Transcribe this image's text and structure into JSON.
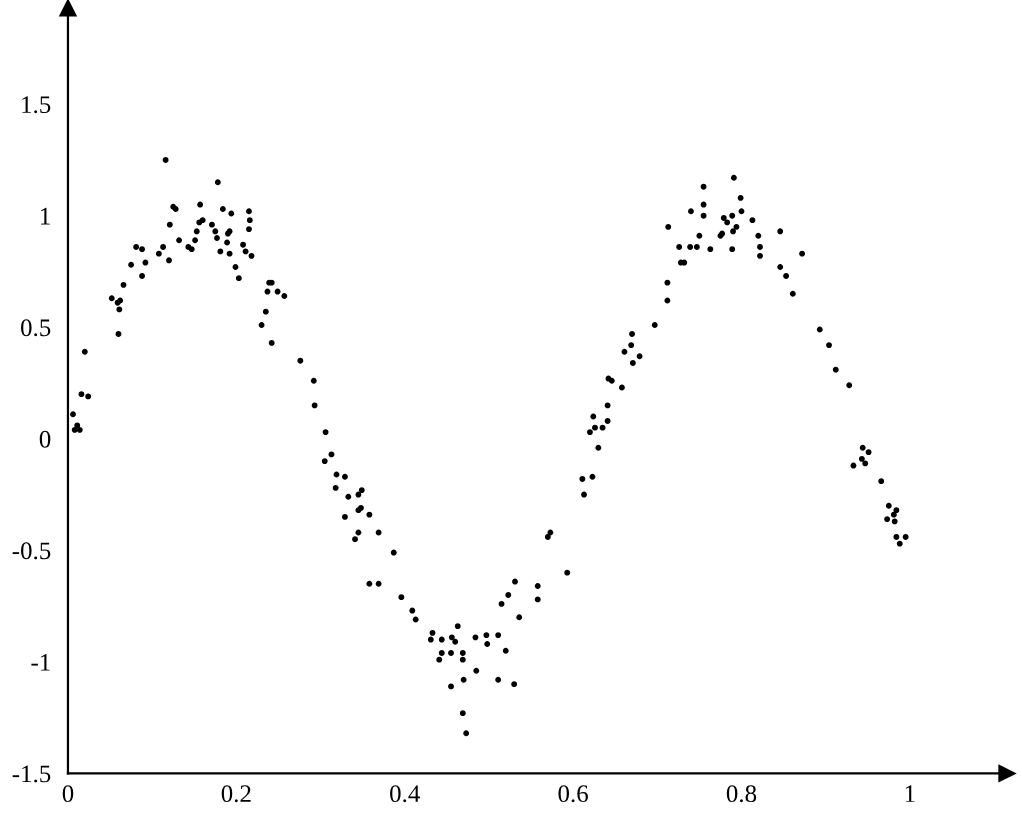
{
  "chart_data": {
    "type": "scatter",
    "xlim": [
      0,
      1.115
    ],
    "ylim": [
      -1.5,
      1.93
    ],
    "xticks": [
      0,
      0.2,
      0.4,
      0.6,
      0.8,
      1
    ],
    "yticks": [
      -1.5,
      -1,
      -0.5,
      0,
      0.5,
      1,
      1.5
    ],
    "marker": "circle",
    "series": [
      {
        "color": "#000000",
        "x": [
          0.006,
          0.011,
          0.008,
          0.014,
          0.016,
          0.024,
          0.02,
          0.052,
          0.059,
          0.062,
          0.061,
          0.06,
          0.066,
          0.075,
          0.081,
          0.088,
          0.088,
          0.092,
          0.108,
          0.113,
          0.116,
          0.12,
          0.121,
          0.125,
          0.128,
          0.132,
          0.143,
          0.147,
          0.151,
          0.153,
          0.156,
          0.157,
          0.16,
          0.171,
          0.175,
          0.177,
          0.178,
          0.181,
          0.184,
          0.189,
          0.19,
          0.192,
          0.192,
          0.194,
          0.199,
          0.203,
          0.208,
          0.211,
          0.215,
          0.215,
          0.216,
          0.218,
          0.23,
          0.235,
          0.237,
          0.239,
          0.242,
          0.242,
          0.249,
          0.257,
          0.276,
          0.292,
          0.293,
          0.305,
          0.306,
          0.313,
          0.318,
          0.319,
          0.329,
          0.329,
          0.333,
          0.341,
          0.345,
          0.345,
          0.345,
          0.348,
          0.349,
          0.358,
          0.358,
          0.369,
          0.369,
          0.387,
          0.396,
          0.409,
          0.413,
          0.431,
          0.433,
          0.441,
          0.444,
          0.444,
          0.455,
          0.455,
          0.456,
          0.46,
          0.463,
          0.469,
          0.469,
          0.469,
          0.47,
          0.473,
          0.484,
          0.485,
          0.497,
          0.498,
          0.511,
          0.511,
          0.515,
          0.52,
          0.523,
          0.53,
          0.531,
          0.536,
          0.558,
          0.558,
          0.57,
          0.573,
          0.593,
          0.611,
          0.613,
          0.62,
          0.623,
          0.624,
          0.626,
          0.63,
          0.635,
          0.641,
          0.641,
          0.642,
          0.646,
          0.658,
          0.661,
          0.669,
          0.67,
          0.671,
          0.679,
          0.697,
          0.712,
          0.712,
          0.713,
          0.726,
          0.728,
          0.732,
          0.739,
          0.74,
          0.747,
          0.75,
          0.755,
          0.755,
          0.755,
          0.763,
          0.775,
          0.777,
          0.779,
          0.783,
          0.789,
          0.789,
          0.79,
          0.791,
          0.794,
          0.799,
          0.8,
          0.813,
          0.82,
          0.822,
          0.822,
          0.846,
          0.846,
          0.853,
          0.861,
          0.872,
          0.893,
          0.904,
          0.912,
          0.928,
          0.933,
          0.943,
          0.944,
          0.947,
          0.951,
          0.966,
          0.973,
          0.975,
          0.981,
          0.982,
          0.984,
          0.984,
          0.988,
          0.995
        ],
        "values": [
          0.11,
          0.06,
          0.04,
          0.04,
          0.2,
          0.19,
          0.39,
          0.63,
          0.61,
          0.62,
          0.58,
          0.47,
          0.69,
          0.78,
          0.86,
          0.85,
          0.73,
          0.79,
          0.83,
          0.86,
          1.25,
          0.8,
          0.96,
          1.04,
          1.03,
          0.89,
          0.86,
          0.85,
          0.89,
          0.93,
          0.97,
          1.05,
          0.98,
          0.96,
          0.93,
          0.9,
          1.15,
          0.84,
          1.03,
          0.88,
          0.92,
          0.93,
          0.83,
          1.01,
          0.77,
          0.72,
          0.87,
          0.84,
          1.02,
          0.94,
          0.98,
          0.82,
          0.51,
          0.57,
          0.66,
          0.7,
          0.7,
          0.43,
          0.66,
          0.64,
          0.35,
          0.26,
          0.15,
          -0.1,
          0.03,
          -0.07,
          -0.22,
          -0.16,
          -0.17,
          -0.35,
          -0.26,
          -0.45,
          -0.25,
          -0.32,
          -0.42,
          -0.31,
          -0.23,
          -0.34,
          -0.65,
          -0.42,
          -0.65,
          -0.51,
          -0.71,
          -0.77,
          -0.81,
          -0.9,
          -0.87,
          -0.99,
          -0.9,
          -0.96,
          -0.96,
          -1.11,
          -0.89,
          -0.91,
          -0.84,
          -0.96,
          -0.99,
          -1.23,
          -1.08,
          -1.32,
          -0.89,
          -1.04,
          -0.88,
          -0.92,
          -0.88,
          -1.08,
          -0.74,
          -0.95,
          -0.7,
          -1.1,
          -0.64,
          -0.8,
          -0.66,
          -0.72,
          -0.44,
          -0.42,
          -0.6,
          -0.18,
          -0.25,
          0.03,
          -0.17,
          0.1,
          0.05,
          -0.04,
          0.05,
          0.08,
          0.15,
          0.27,
          0.26,
          0.23,
          0.39,
          0.42,
          0.47,
          0.34,
          0.37,
          0.51,
          0.62,
          0.7,
          0.95,
          0.86,
          0.79,
          0.79,
          0.86,
          1.02,
          0.86,
          0.91,
          1.13,
          1.05,
          1.0,
          0.85,
          0.91,
          0.92,
          0.99,
          0.97,
          1.0,
          0.85,
          0.93,
          1.17,
          0.95,
          1.08,
          1.02,
          0.98,
          0.91,
          0.86,
          0.82,
          0.93,
          0.77,
          0.73,
          0.65,
          0.83,
          0.49,
          0.42,
          0.31,
          0.24,
          -0.12,
          -0.09,
          -0.04,
          -0.11,
          -0.06,
          -0.19,
          -0.36,
          -0.3,
          -0.34,
          -0.37,
          -0.32,
          -0.44,
          -0.47,
          -0.44
        ]
      }
    ]
  }
}
